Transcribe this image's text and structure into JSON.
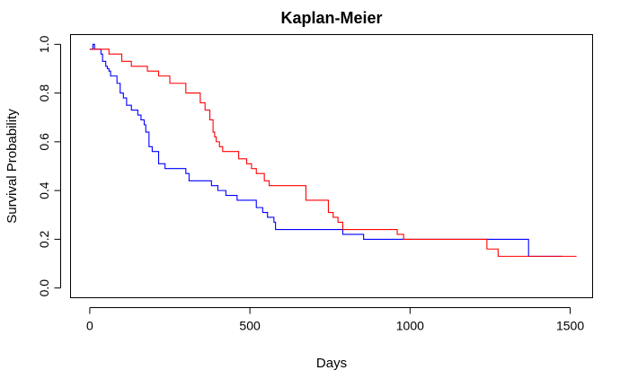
{
  "chart_data": {
    "type": "line",
    "title": "Kaplan-Meier",
    "xlabel": "Days",
    "ylabel": "Survival Probability",
    "xlim": [
      -60,
      1570
    ],
    "ylim": [
      -0.04,
      1.04
    ],
    "xticks": [
      0,
      500,
      1000,
      1500
    ],
    "yticks": [
      0.0,
      0.2,
      0.4,
      0.6,
      0.8,
      1.0
    ],
    "ytick_labels": [
      "0.0",
      "0.2",
      "0.4",
      "0.6",
      "0.8",
      "1.0"
    ],
    "grid": false,
    "legend": "none",
    "series": [
      {
        "color": "#0000ff",
        "x": [
          0,
          10,
          15,
          25,
          35,
          40,
          50,
          55,
          60,
          65,
          75,
          85,
          95,
          105,
          115,
          130,
          150,
          160,
          170,
          175,
          185,
          195,
          215,
          235,
          245,
          300,
          310,
          380,
          400,
          425,
          440,
          460,
          475,
          520,
          540,
          555,
          575,
          580,
          790,
          855,
          1370,
          1475
        ],
        "y": [
          0.98,
          1.0,
          0.98,
          0.98,
          0.96,
          0.93,
          0.91,
          0.9,
          0.89,
          0.87,
          0.87,
          0.84,
          0.8,
          0.78,
          0.75,
          0.73,
          0.71,
          0.69,
          0.67,
          0.64,
          0.58,
          0.56,
          0.51,
          0.49,
          0.49,
          0.47,
          0.44,
          0.42,
          0.4,
          0.38,
          0.38,
          0.36,
          0.36,
          0.33,
          0.31,
          0.29,
          0.27,
          0.24,
          0.22,
          0.2,
          0.13,
          0.13
        ]
      },
      {
        "color": "#ff0000",
        "x": [
          0,
          10,
          20,
          60,
          100,
          130,
          180,
          215,
          250,
          300,
          345,
          360,
          375,
          385,
          390,
          395,
          405,
          415,
          465,
          490,
          505,
          520,
          545,
          560,
          675,
          745,
          760,
          775,
          790,
          800,
          960,
          980,
          1240,
          1260,
          1275,
          1520
        ],
        "y": [
          0.98,
          0.98,
          0.98,
          0.96,
          0.93,
          0.91,
          0.89,
          0.87,
          0.84,
          0.8,
          0.76,
          0.73,
          0.69,
          0.64,
          0.62,
          0.6,
          0.58,
          0.56,
          0.53,
          0.51,
          0.49,
          0.47,
          0.44,
          0.42,
          0.36,
          0.31,
          0.29,
          0.27,
          0.24,
          0.24,
          0.22,
          0.2,
          0.16,
          0.16,
          0.13,
          0.13
        ]
      }
    ]
  }
}
